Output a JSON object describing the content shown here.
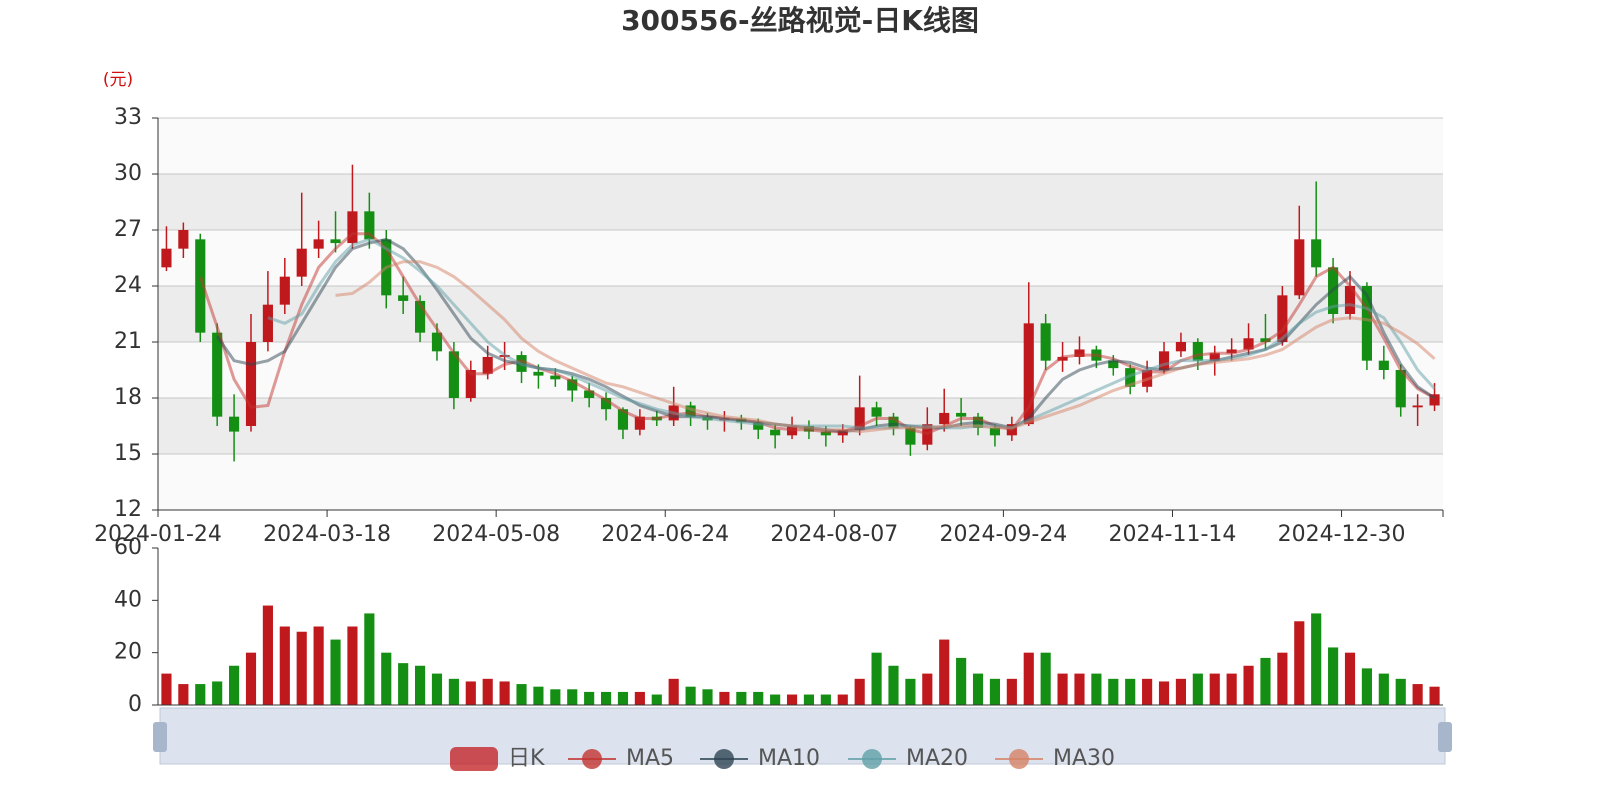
{
  "chart_data": [
    {
      "type": "candlestick",
      "title": "300556-丝路视觉-日K线图",
      "y_label": "(元)",
      "categories": [
        "2024-01-24",
        null,
        null,
        null,
        null,
        null,
        null,
        null,
        null,
        null,
        "2024-03-18",
        null,
        null,
        null,
        null,
        null,
        null,
        null,
        null,
        null,
        "2024-05-08",
        null,
        null,
        null,
        null,
        null,
        null,
        null,
        null,
        null,
        "2024-06-24",
        null,
        null,
        null,
        null,
        null,
        null,
        null,
        null,
        null,
        "2024-08-07",
        null,
        null,
        null,
        null,
        null,
        null,
        null,
        null,
        null,
        "2024-09-24",
        null,
        null,
        null,
        null,
        null,
        null,
        null,
        null,
        null,
        "2024-11-14",
        null,
        null,
        null,
        null,
        null,
        null,
        null,
        null,
        null,
        "2024-12-30",
        null,
        null,
        null,
        null,
        null
      ],
      "ylim": [
        12,
        33
      ],
      "yticks": [
        12,
        15,
        18,
        21,
        24,
        27,
        30,
        33
      ],
      "grid": true,
      "up_color": "#c0191d",
      "down_color": "#148f14",
      "series": [
        {
          "name": "日K",
          "color": "#c0191d",
          "values": [
            [
              25,
              26,
              24.8,
              27.2
            ],
            [
              26,
              27,
              25.5,
              27.4
            ],
            [
              26.5,
              21.5,
              21,
              26.8
            ],
            [
              21.5,
              17,
              16.5,
              22
            ],
            [
              17,
              16.2,
              14.6,
              18.2
            ],
            [
              16.5,
              21,
              16.2,
              22.5
            ],
            [
              21,
              23,
              20.5,
              24.8
            ],
            [
              23,
              24.5,
              22.5,
              25.5
            ],
            [
              24.5,
              26,
              24,
              29
            ],
            [
              26,
              26.5,
              25.5,
              27.5
            ],
            [
              26.5,
              26.3,
              25.8,
              28
            ],
            [
              26.3,
              28,
              26,
              30.5
            ],
            [
              28,
              26.5,
              26,
              29
            ],
            [
              26.5,
              23.5,
              22.8,
              27
            ],
            [
              23.5,
              23.2,
              22.5,
              24.5
            ],
            [
              23.2,
              21.5,
              21,
              23.5
            ],
            [
              21.5,
              20.5,
              20,
              22
            ],
            [
              20.5,
              18,
              17.4,
              21
            ],
            [
              18,
              19.5,
              17.8,
              20
            ],
            [
              19.3,
              20.2,
              19,
              20.8
            ],
            [
              20.2,
              20.3,
              19.5,
              21
            ],
            [
              20.3,
              19.4,
              18.8,
              20.5
            ],
            [
              19.4,
              19.2,
              18.5,
              19.8
            ],
            [
              19.2,
              19,
              18.6,
              19.6
            ],
            [
              19,
              18.4,
              17.8,
              19.2
            ],
            [
              18.4,
              18,
              17.5,
              18.8
            ],
            [
              18,
              17.4,
              16.8,
              18.3
            ],
            [
              17.4,
              16.3,
              15.8,
              17.5
            ],
            [
              16.3,
              17,
              16,
              17.4
            ],
            [
              17,
              16.8,
              16.5,
              17.3
            ],
            [
              16.8,
              17.6,
              16.5,
              18.6
            ],
            [
              17.6,
              17,
              16.5,
              17.8
            ],
            [
              17,
              16.8,
              16.3,
              17.2
            ],
            [
              16.8,
              16.9,
              16.2,
              17.3
            ],
            [
              16.9,
              16.7,
              16.3,
              17.1
            ],
            [
              16.7,
              16.3,
              15.8,
              16.9
            ],
            [
              16.3,
              16,
              15.3,
              16.6
            ],
            [
              16,
              16.5,
              15.8,
              17
            ],
            [
              16.5,
              16.2,
              15.8,
              16.8
            ],
            [
              16.2,
              16,
              15.4,
              16.5
            ],
            [
              16,
              16.3,
              15.6,
              16.6
            ],
            [
              16.3,
              17.5,
              16,
              19.2
            ],
            [
              17.5,
              17,
              16.5,
              17.8
            ],
            [
              17,
              16.4,
              16,
              17.2
            ],
            [
              16.4,
              15.5,
              14.9,
              16.5
            ],
            [
              15.5,
              16.6,
              15.2,
              17.5
            ],
            [
              16.6,
              17.2,
              16.2,
              18.5
            ],
            [
              17.2,
              17,
              16.5,
              18
            ],
            [
              17,
              16.4,
              16,
              17.2
            ],
            [
              16.4,
              16,
              15.4,
              16.6
            ],
            [
              16,
              16.6,
              15.7,
              17
            ],
            [
              16.6,
              22,
              16.5,
              24.2
            ],
            [
              22,
              20,
              19.5,
              22.5
            ],
            [
              20,
              20.2,
              19.4,
              21
            ],
            [
              20.2,
              20.6,
              19.8,
              21.3
            ],
            [
              20.6,
              20,
              19.6,
              20.8
            ],
            [
              20,
              19.6,
              19.2,
              20.3
            ],
            [
              19.6,
              18.6,
              18.2,
              19.8
            ],
            [
              18.6,
              19.5,
              18.3,
              20
            ],
            [
              19.5,
              20.5,
              19.3,
              21
            ],
            [
              20.5,
              21,
              20.2,
              21.5
            ],
            [
              21,
              20,
              19.5,
              21.2
            ],
            [
              20,
              20.4,
              19.2,
              20.8
            ],
            [
              20.4,
              20.6,
              20,
              21.2
            ],
            [
              20.6,
              21.2,
              20.3,
              22
            ],
            [
              21.2,
              21,
              20.6,
              22.5
            ],
            [
              21,
              23.5,
              20.8,
              24
            ],
            [
              23.5,
              26.5,
              23.3,
              28.3
            ],
            [
              26.5,
              25,
              24.5,
              29.6
            ],
            [
              25,
              22.5,
              22,
              25.5
            ],
            [
              22.5,
              24,
              22.2,
              24.8
            ],
            [
              24,
              20,
              19.5,
              24.2
            ],
            [
              20,
              19.5,
              19,
              20.8
            ],
            [
              19.5,
              17.5,
              17,
              19.8
            ],
            [
              17.5,
              17.6,
              16.5,
              18.2
            ],
            [
              17.6,
              18.2,
              17.3,
              18.8
            ]
          ]
        },
        {
          "name": "MA5",
          "color": "#c23531",
          "values": [
            null,
            null,
            24.5,
            21.8,
            19,
            17.5,
            17.6,
            20.5,
            23,
            25,
            26,
            26.8,
            26.8,
            26,
            24.5,
            23,
            21.7,
            20.4,
            19.3,
            19.3,
            19.8,
            20,
            19.6,
            19.3,
            18.9,
            18.4,
            17.9,
            17.3,
            16.9,
            16.9,
            17.1,
            17.2,
            17,
            16.9,
            16.8,
            16.7,
            16.4,
            16.3,
            16.3,
            16.2,
            16.2,
            16.5,
            16.9,
            16.9,
            16.3,
            16.1,
            16.5,
            16.9,
            16.9,
            16.5,
            16.3,
            17.5,
            19.5,
            20.2,
            20.3,
            20.3,
            20.1,
            19.7,
            19.4,
            19.4,
            20,
            20.3,
            20.4,
            20.4,
            20.6,
            21,
            21.6,
            23,
            24.5,
            25,
            24,
            22.8,
            21.2,
            19.5,
            18.5,
            18
          ]
        },
        {
          "name": "MA10",
          "color": "#2f4554",
          "values": [
            null,
            null,
            null,
            21.3,
            20,
            19.8,
            20,
            20.5,
            22,
            23.5,
            25,
            26,
            26.3,
            26.5,
            26,
            25,
            23.8,
            22.5,
            21.2,
            20.4,
            20,
            19.8,
            19.6,
            19.5,
            19.3,
            19,
            18.6,
            18.1,
            17.6,
            17.3,
            17,
            17,
            17,
            16.9,
            16.8,
            16.7,
            16.6,
            16.5,
            16.4,
            16.3,
            16.2,
            16.3,
            16.5,
            16.6,
            16.5,
            16.4,
            16.4,
            16.6,
            16.7,
            16.6,
            16.4,
            16.9,
            18,
            19,
            19.5,
            19.8,
            20,
            19.9,
            19.6,
            19.5,
            19.6,
            19.8,
            20,
            20.2,
            20.4,
            20.6,
            21,
            22,
            23,
            23.8,
            24.5,
            23.5,
            21.5,
            19.8,
            18.6,
            18
          ]
        },
        {
          "name": "MA20",
          "color": "#61a0a8",
          "values": [
            null,
            null,
            null,
            null,
            null,
            null,
            22.3,
            22,
            22.5,
            24,
            25.3,
            26.2,
            26.5,
            26,
            25.5,
            24.8,
            24,
            23,
            22,
            21,
            20.3,
            19.8,
            19.6,
            19.5,
            19.2,
            18.8,
            18.4,
            18,
            17.7,
            17.4,
            17.2,
            17,
            16.9,
            16.8,
            16.7,
            16.6,
            16.6,
            16.5,
            16.5,
            16.5,
            16.5,
            16.4,
            16.4,
            16.4,
            16.5,
            16.5,
            16.4,
            16.4,
            16.5,
            16.5,
            16.4,
            16.8,
            17.2,
            17.6,
            18,
            18.4,
            18.8,
            19.2,
            19.5,
            19.8,
            20,
            20,
            20,
            20.1,
            20.3,
            20.6,
            21.2,
            22,
            22.6,
            22.9,
            23,
            22.8,
            22.3,
            21,
            19.5,
            18.5
          ]
        },
        {
          "name": "MA30",
          "color": "#d48265",
          "values": [
            null,
            null,
            null,
            null,
            null,
            null,
            null,
            null,
            null,
            null,
            23.5,
            23.6,
            24.2,
            25,
            25.3,
            25.3,
            25,
            24.5,
            23.8,
            23,
            22.2,
            21.2,
            20.5,
            20,
            19.6,
            19.2,
            18.8,
            18.6,
            18.3,
            18,
            17.7,
            17.4,
            17.2,
            17,
            16.9,
            16.8,
            16.6,
            16.5,
            16.4,
            16.3,
            16.3,
            16.2,
            16.3,
            16.4,
            16.4,
            16.4,
            16.5,
            16.5,
            16.5,
            16.4,
            16.4,
            16.7,
            17,
            17.3,
            17.6,
            18,
            18.4,
            18.7,
            19,
            19.3,
            19.6,
            19.8,
            19.9,
            20,
            20.1,
            20.3,
            20.6,
            21.2,
            21.8,
            22.2,
            22.3,
            22.2,
            22,
            21.5,
            20.9,
            20.1
          ]
        }
      ]
    },
    {
      "type": "bar",
      "ylim": [
        0,
        60
      ],
      "yticks": [
        0,
        20,
        40,
        60
      ],
      "values": [
        12,
        8,
        8,
        9,
        15,
        20,
        38,
        30,
        28,
        30,
        25,
        30,
        35,
        20,
        16,
        15,
        12,
        10,
        9,
        10,
        9,
        8,
        7,
        6,
        6,
        5,
        5,
        5,
        5,
        4,
        10,
        7,
        6,
        5,
        5,
        5,
        4,
        4,
        4,
        4,
        4,
        10,
        20,
        15,
        10,
        12,
        25,
        18,
        12,
        10,
        10,
        20,
        20,
        12,
        12,
        12,
        10,
        10,
        10,
        9,
        10,
        12,
        12,
        12,
        15,
        18,
        20,
        32,
        35,
        22,
        20,
        14,
        12,
        10,
        8,
        7
      ]
    }
  ]
}
